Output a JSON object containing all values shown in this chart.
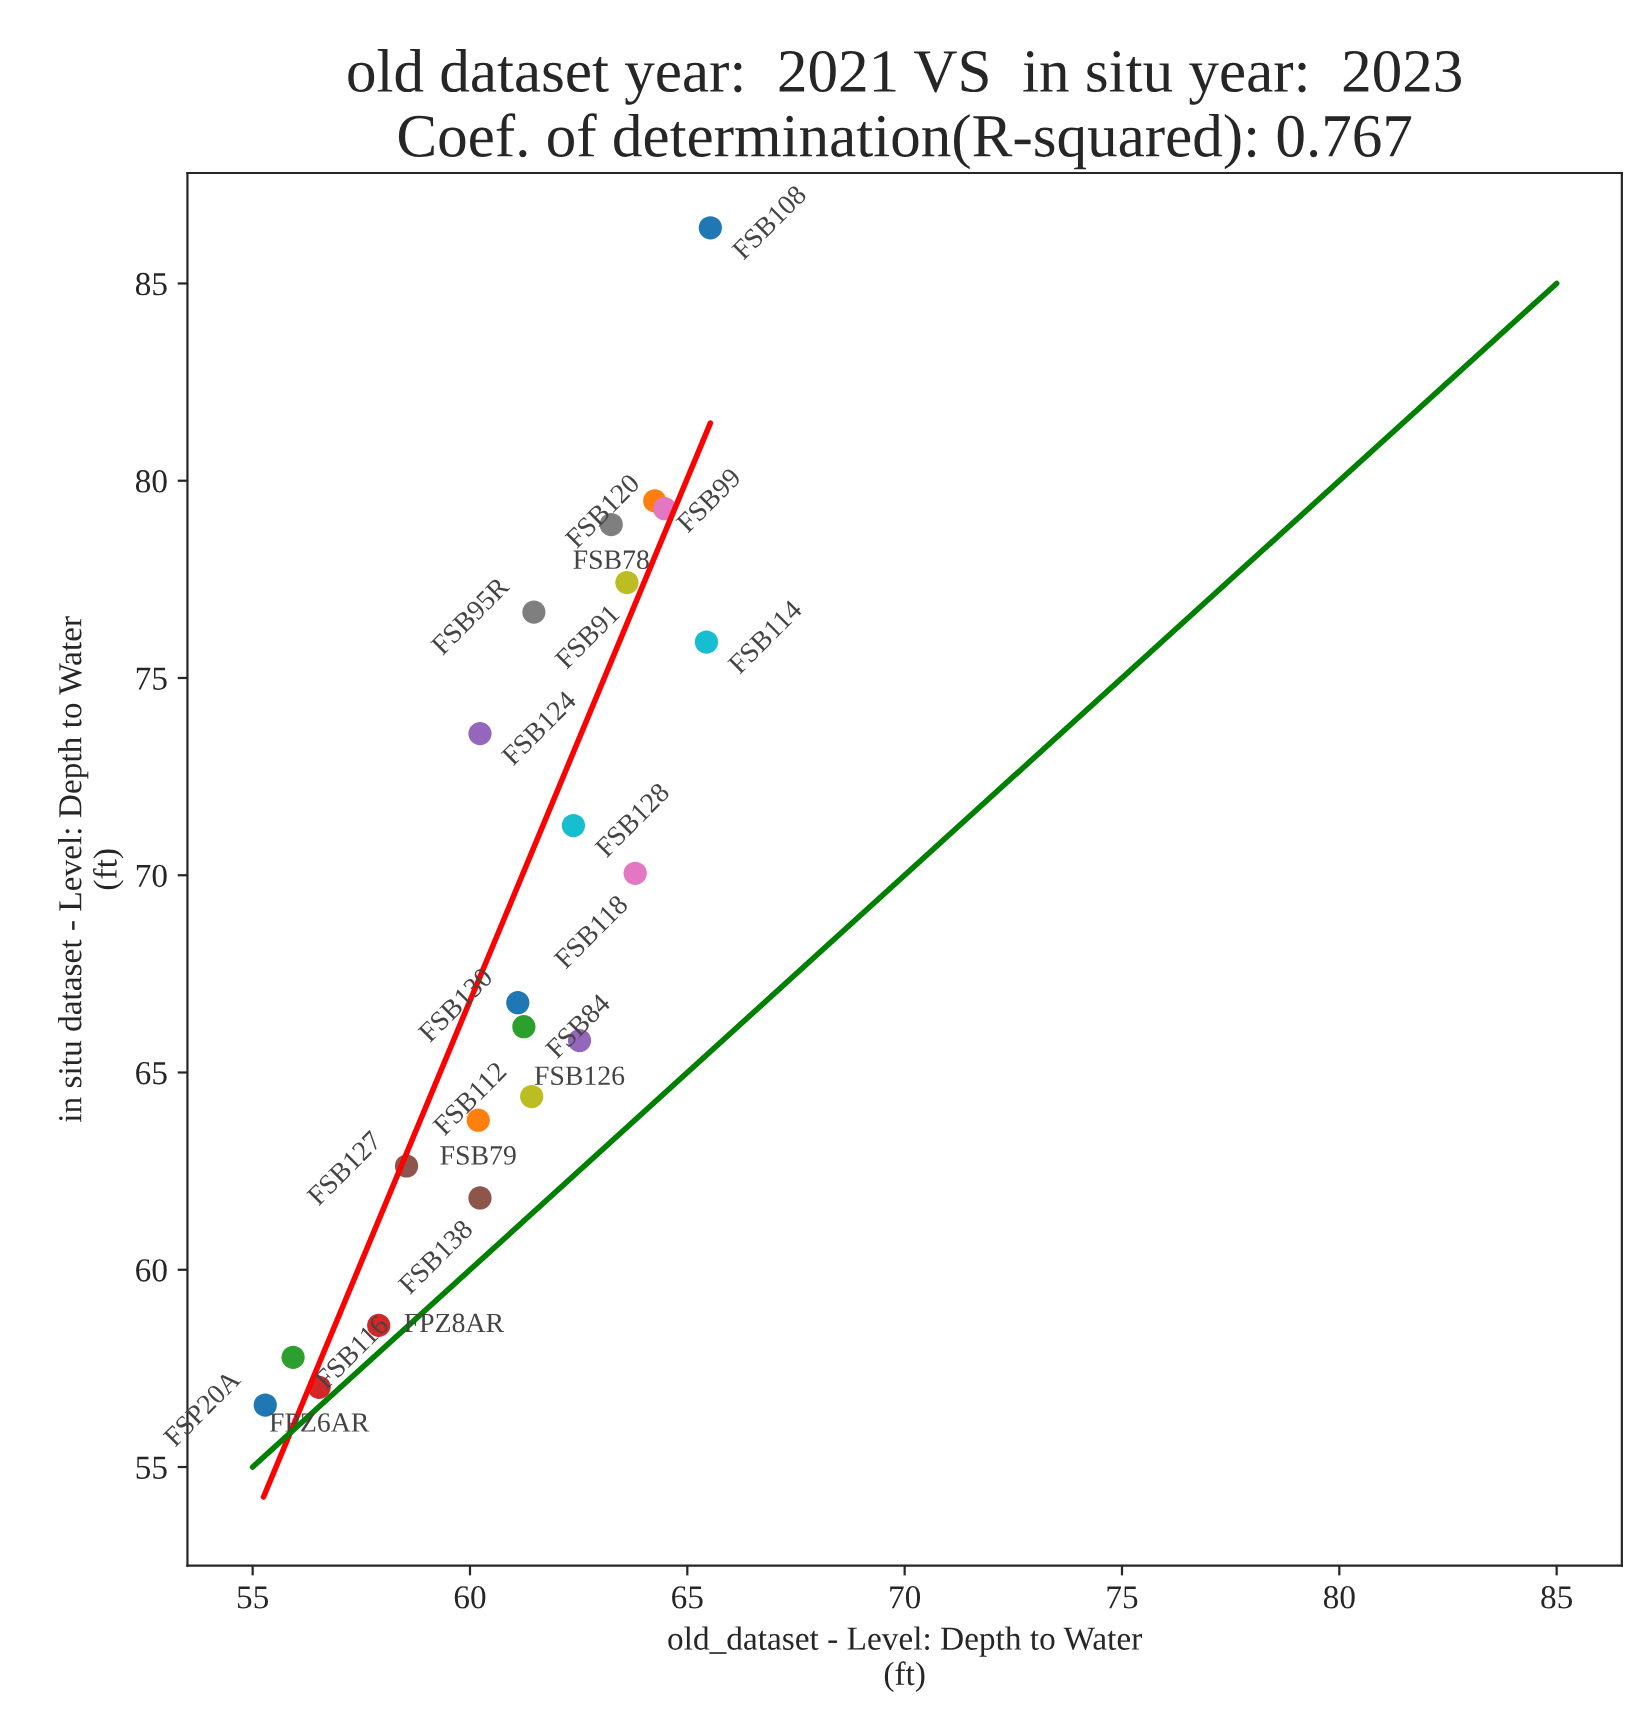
{
  "chart_data": {
    "type": "scatter",
    "title": "old dataset year:  2021 VS  in situ year:  2023\nCoef. of determination(R-squared): 0.767",
    "xlabel": "old_dataset - Level: Depth to Water\n(ft)",
    "ylabel": "in situ dataset - Level: Depth to Water\n(ft)",
    "xlim": [
      53.5,
      86.5
    ],
    "ylim": [
      52.5,
      87.8
    ],
    "xticks": [
      55,
      60,
      65,
      70,
      75,
      80,
      85
    ],
    "yticks": [
      55,
      60,
      65,
      70,
      75,
      80,
      85
    ],
    "grid": false,
    "series": [
      {
        "marker": "circle",
        "x": [
          65.53,
          64.25,
          64.48,
          63.25,
          63.61,
          61.47,
          65.44,
          60.23,
          62.38,
          63.8,
          61.1,
          61.24,
          62.52,
          61.42,
          60.19,
          58.54,
          60.23,
          55.93,
          55.29,
          56.53,
          57.9
        ],
        "values": [
          86.41,
          79.49,
          79.29,
          78.89,
          77.42,
          76.67,
          75.91,
          73.59,
          71.26,
          70.05,
          66.77,
          66.16,
          65.81,
          64.39,
          63.79,
          62.63,
          61.82,
          57.78,
          56.57,
          57.02,
          58.59
        ],
        "colors": [
          "#1f77b4",
          "#ff7f0e",
          "#e377c2",
          "#7f7f7f",
          "#bcbd22",
          "#7f7f7f",
          "#17becf",
          "#9467bd",
          "#17becf",
          "#e377c2",
          "#1f77b4",
          "#2ca02c",
          "#9467bd",
          "#bcbd22",
          "#ff7f0e",
          "#8c564b",
          "#8c564b",
          "#2ca02c",
          "#1f77b4",
          "#d62728",
          "#d62728"
        ]
      },
      {
        "type": "line",
        "color": "#ff0000",
        "x": [
          55.25,
          65.53
        ],
        "values": [
          54.24,
          81.46
        ]
      },
      {
        "type": "line",
        "color": "#008000",
        "x": [
          55,
          85
        ],
        "values": [
          55,
          85
        ]
      }
    ],
    "annotations": [
      {
        "text": "FSB108",
        "x": 65.53,
        "y": 86.41
      },
      {
        "text": "FSB99",
        "x": 64.25,
        "y": 79.49
      },
      {
        "text": "FSB120",
        "x": 64.48,
        "y": 79.29
      },
      {
        "text": "FSB78",
        "x": 63.25,
        "y": 78.89
      },
      {
        "text": "FSB91",
        "x": 63.61,
        "y": 77.42
      },
      {
        "text": "FSB95R",
        "x": 61.47,
        "y": 76.67
      },
      {
        "text": "FSB114",
        "x": 65.44,
        "y": 75.91
      },
      {
        "text": "FSB124",
        "x": 60.23,
        "y": 73.59
      },
      {
        "text": "FSB128",
        "x": 62.38,
        "y": 71.26
      },
      {
        "text": "FSB118",
        "x": 63.8,
        "y": 70.05
      },
      {
        "text": "FSB130",
        "x": 61.1,
        "y": 66.77
      },
      {
        "text": "FSB84",
        "x": 61.24,
        "y": 66.16
      },
      {
        "text": "FSB126",
        "x": 62.52,
        "y": 65.81
      },
      {
        "text": "FSB112",
        "x": 61.42,
        "y": 64.39
      },
      {
        "text": "FSB79",
        "x": 60.19,
        "y": 63.79
      },
      {
        "text": "FSB127",
        "x": 58.54,
        "y": 62.63
      },
      {
        "text": "FSB138",
        "x": 60.23,
        "y": 61.82
      },
      {
        "text": "FSB116",
        "x": 55.93,
        "y": 57.78
      },
      {
        "text": "FSP20A",
        "x": 55.29,
        "y": 56.57
      },
      {
        "text": "FPZ6AR",
        "x": 56.53,
        "y": 57.02
      },
      {
        "text": "FPZ8AR",
        "x": 57.9,
        "y": 58.59
      }
    ]
  }
}
